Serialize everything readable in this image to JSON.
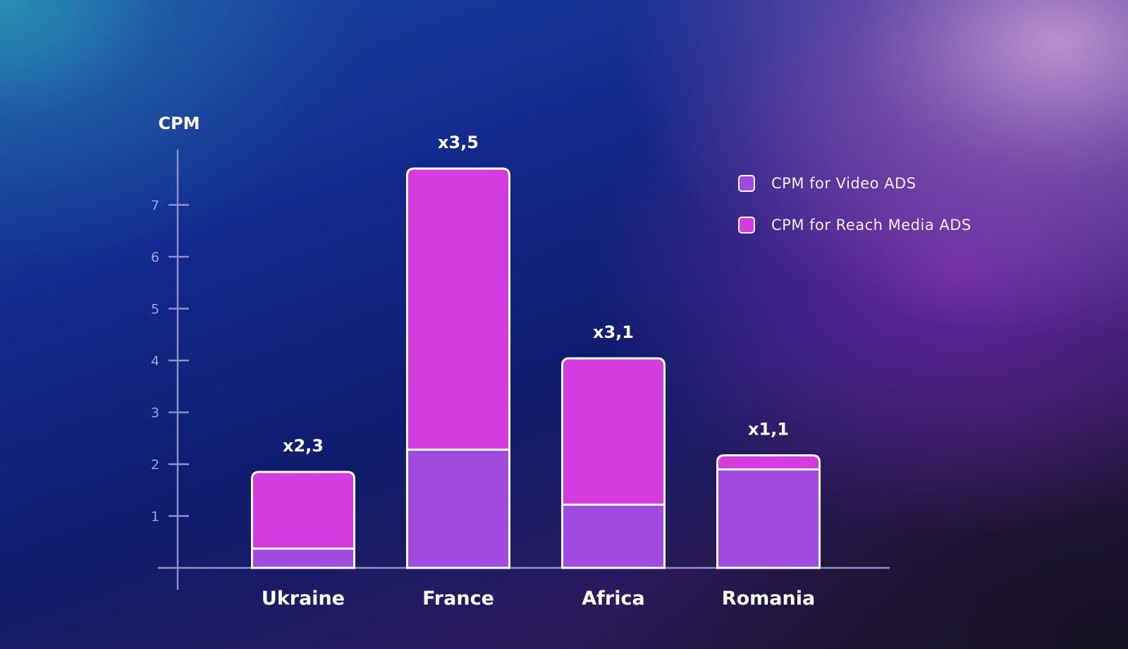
{
  "chart_data": {
    "type": "bar",
    "stacked": true,
    "ylabel": "CPM",
    "ylim": [
      0,
      8
    ],
    "yticks": [
      1,
      2,
      3,
      4,
      5,
      6,
      7
    ],
    "categories": [
      "Ukraine",
      "France",
      "Africa",
      "Romania"
    ],
    "series": [
      {
        "name": "CPM for Video ADS",
        "color": "#a04ae0",
        "values": [
          0.37,
          2.28,
          1.22,
          1.9
        ]
      },
      {
        "name": "CPM for Reach Media ADS",
        "color": "#d43ce0",
        "values": [
          1.48,
          5.42,
          2.82,
          0.27
        ]
      }
    ],
    "annotations": [
      "x2,3",
      "x3,5",
      "x3,1",
      "x1,1"
    ],
    "grid": false,
    "legend_position": "top-right",
    "bar_outline_color": "#ffffff",
    "axis_color": "#8c90c8"
  }
}
